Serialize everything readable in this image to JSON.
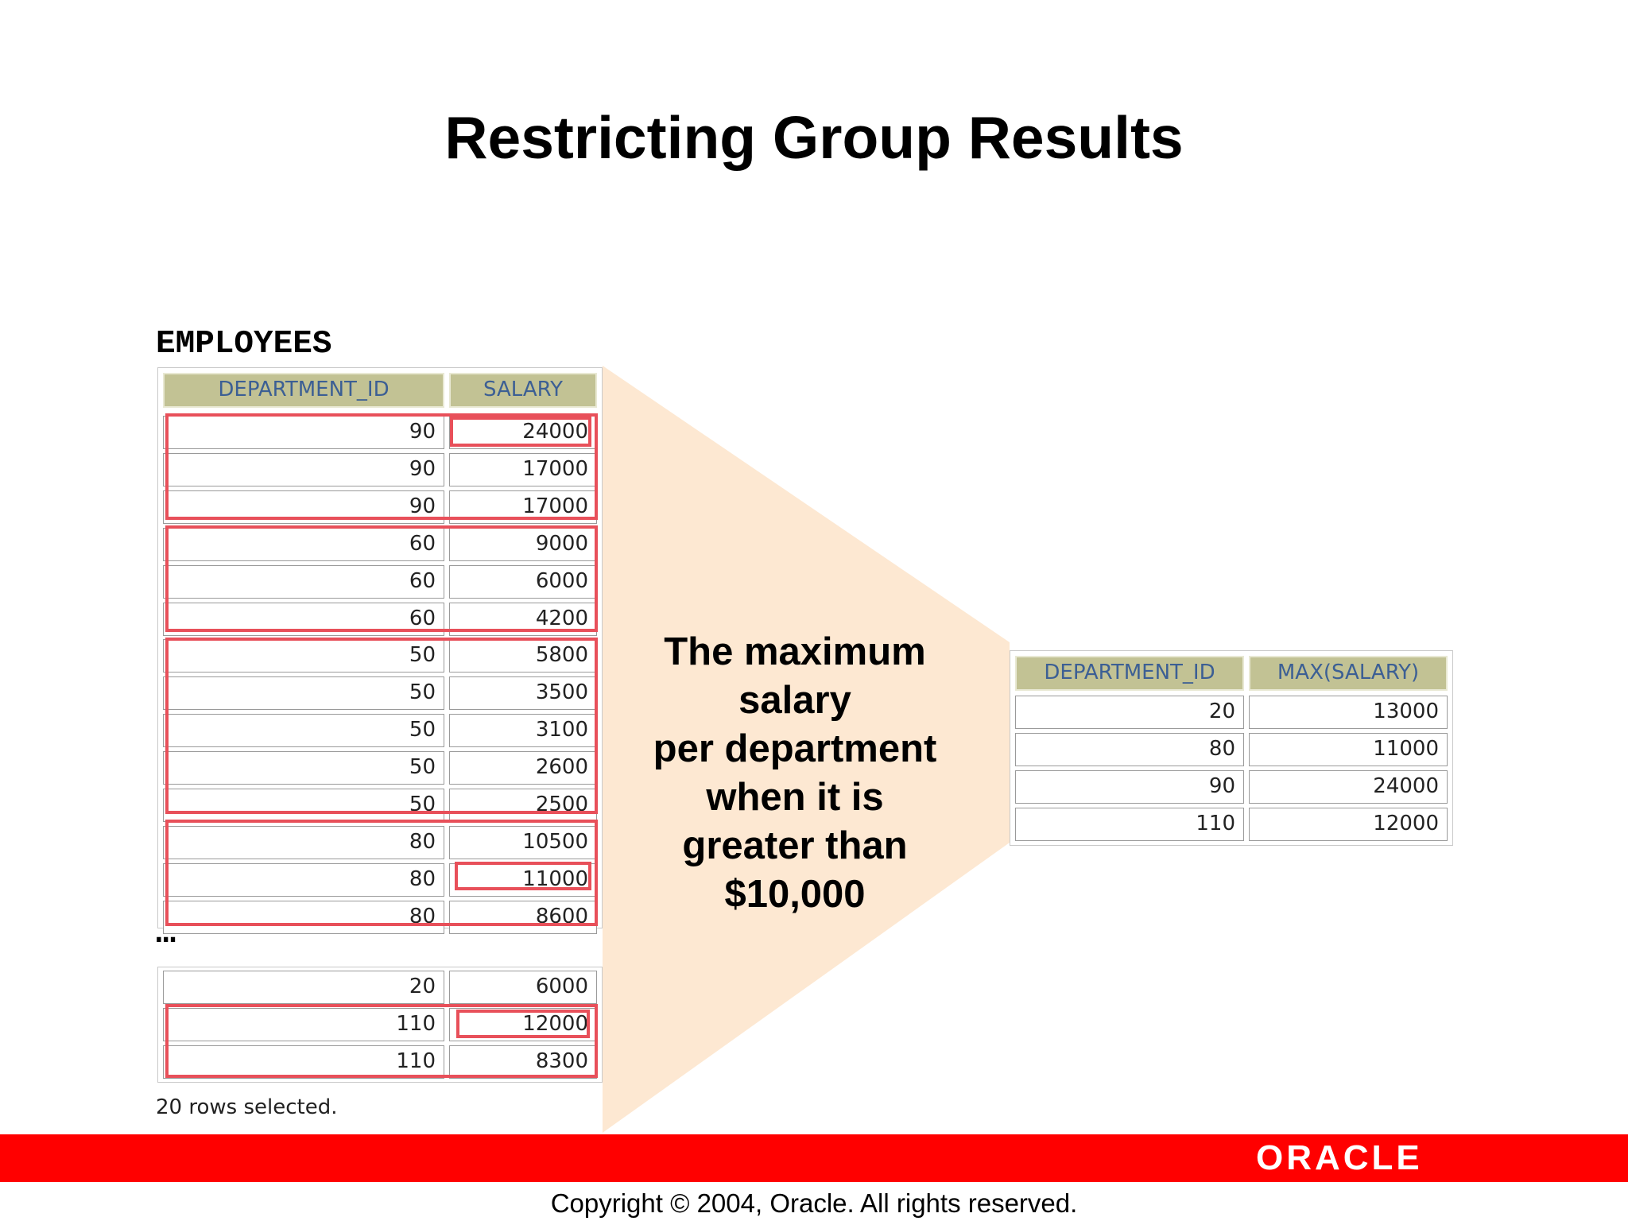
{
  "slide": {
    "title": "Restricting Group Results",
    "table_label": "EMPLOYEES",
    "ellipsis": "…",
    "rows_selected": "20 rows selected.",
    "callout_lines": [
      "The maximum",
      "salary",
      "per department",
      "when it is",
      "greater than",
      "$10,000"
    ],
    "copyright": "Copyright © 2004, Oracle.  All rights reserved.",
    "logo": "ORACLE"
  },
  "employees": {
    "columns": [
      "DEPARTMENT_ID",
      "SALARY"
    ],
    "rows_top": [
      [
        "90",
        "24000"
      ],
      [
        "90",
        "17000"
      ],
      [
        "90",
        "17000"
      ],
      [
        "60",
        "9000"
      ],
      [
        "60",
        "6000"
      ],
      [
        "60",
        "4200"
      ],
      [
        "50",
        "5800"
      ],
      [
        "50",
        "3500"
      ],
      [
        "50",
        "3100"
      ],
      [
        "50",
        "2600"
      ],
      [
        "50",
        "2500"
      ],
      [
        "80",
        "10500"
      ],
      [
        "80",
        "11000"
      ],
      [
        "80",
        "8600"
      ]
    ],
    "rows_bottom": [
      [
        "20",
        "6000"
      ],
      [
        "110",
        "12000"
      ],
      [
        "110",
        "8300"
      ]
    ]
  },
  "result": {
    "columns": [
      "DEPARTMENT_ID",
      "MAX(SALARY)"
    ],
    "rows": [
      [
        "20",
        "13000"
      ],
      [
        "80",
        "11000"
      ],
      [
        "90",
        "24000"
      ],
      [
        "110",
        "12000"
      ]
    ]
  },
  "colors": {
    "header_bg": "#c2c294",
    "header_text": "#3c5f94",
    "highlight": "#e8505a",
    "funnel": "#fde6cf",
    "bar": "#ff0000"
  }
}
